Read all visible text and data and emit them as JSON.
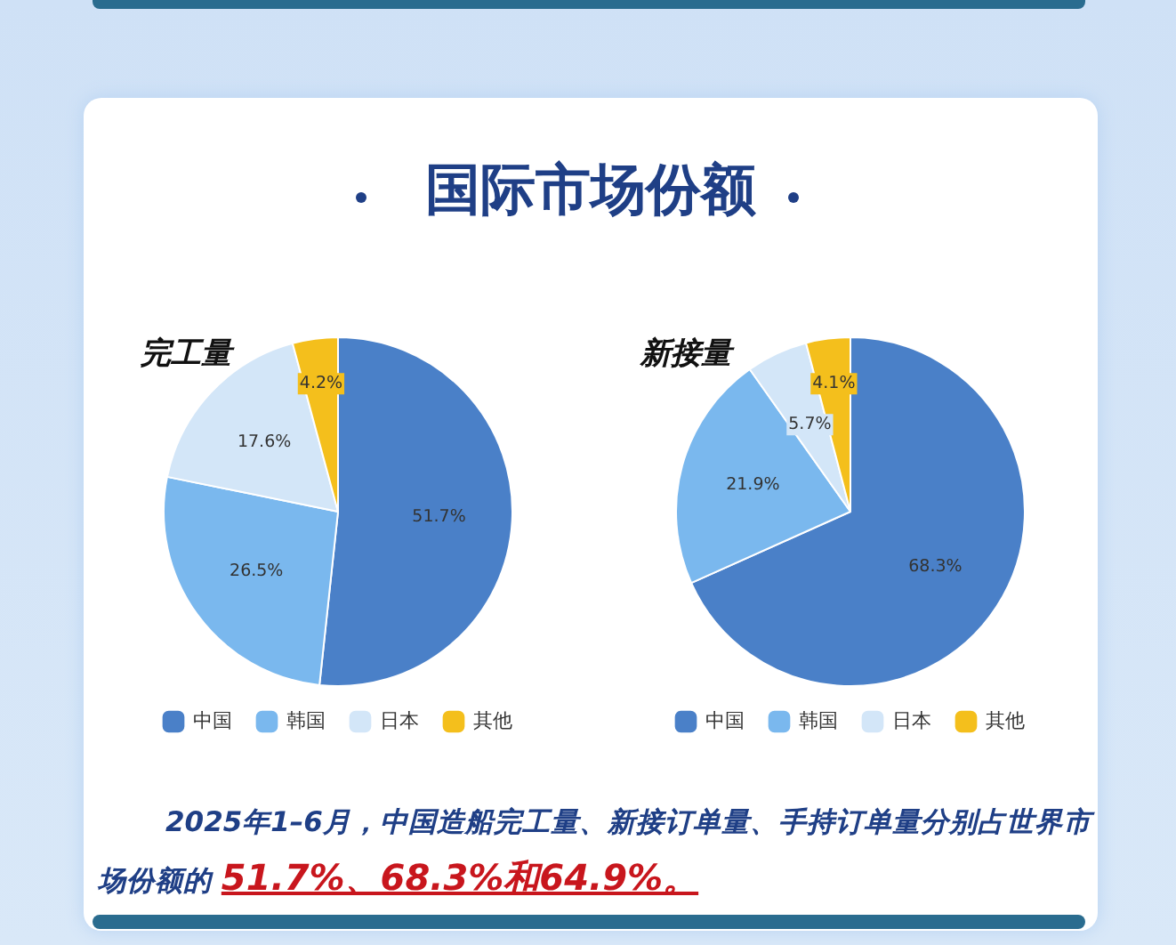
{
  "chart_data": [
    {
      "type": "other",
      "title": "国际市场份额",
      "annotations": [
        "2025年1–6月，中国造船完工量、新接订单量、手持订单量分别占世界市场份额的",
        "51.7%、68.3%和64.9%。"
      ]
    },
    {
      "type": "pie",
      "title": "完工量",
      "categories": [
        "中国",
        "韩国",
        "日本",
        "其他"
      ],
      "values": [
        51.7,
        26.5,
        17.6,
        4.2
      ],
      "value_labels": [
        "51.7%",
        "26.5%",
        "17.6%",
        "4.2%"
      ],
      "colors": [
        "#4a80c8",
        "#7ab8ee",
        "#d3e6f8",
        "#f4bf1c"
      ],
      "legend": "bottom"
    },
    {
      "type": "pie",
      "title": "新接量",
      "categories": [
        "中国",
        "韩国",
        "日本",
        "其他"
      ],
      "values": [
        68.3,
        21.9,
        5.7,
        4.1
      ],
      "value_labels": [
        "68.3%",
        "21.9%",
        "5.7%",
        "4.1%"
      ],
      "colors": [
        "#4a80c8",
        "#7ab8ee",
        "#d3e6f8",
        "#f4bf1c"
      ],
      "legend": "bottom"
    }
  ]
}
